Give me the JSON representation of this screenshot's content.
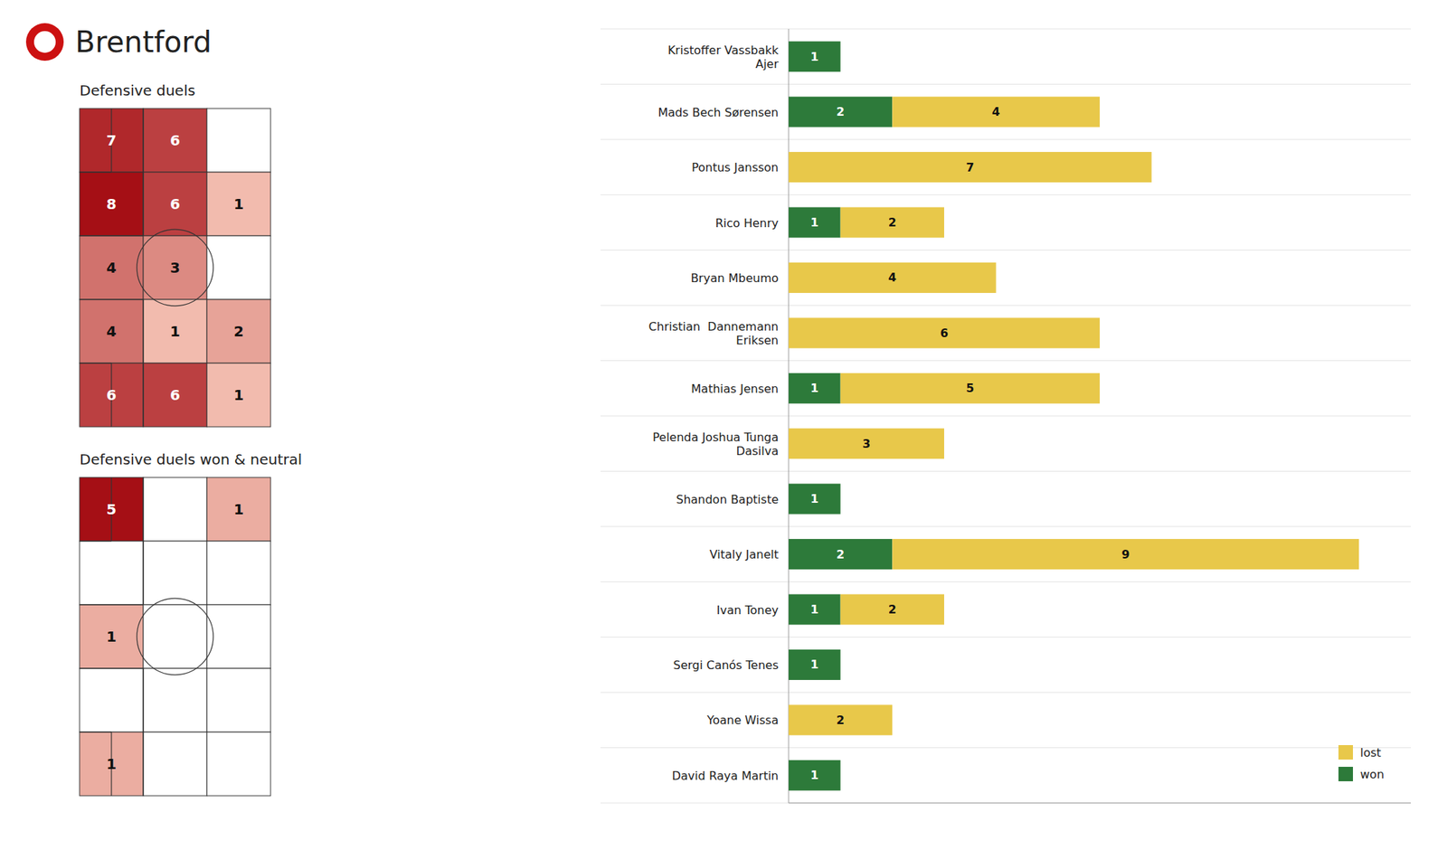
{
  "title": "Brentford",
  "chart_data": [
    {
      "type": "bar",
      "orientation": "horizontal",
      "stacked": true,
      "data_labels": true,
      "tick_labels": "y",
      "grid": true,
      "legend": "lower right",
      "categories": [
        "Kristoffer Vassbakk\nAjer",
        "Mads Bech Sørensen",
        "Pontus Jansson",
        "Rico Henry",
        "Bryan Mbeumo",
        "Christian  Dannemann\nEriksen",
        "Mathias Jensen",
        "Pelenda Joshua Tunga\nDasilva",
        "Shandon Baptiste",
        "Vitaly Janelt",
        "Ivan Toney",
        "Sergi Canós Tenes",
        "Yoane Wissa",
        "David Raya Martin"
      ],
      "series": [
        {
          "name": "won",
          "color": "#2d7a3a",
          "values": [
            1,
            2,
            0,
            1,
            0,
            0,
            1,
            0,
            1,
            2,
            1,
            1,
            0,
            1
          ]
        },
        {
          "name": "lost",
          "color": "#e8c84a",
          "values": [
            0,
            4,
            7,
            2,
            4,
            6,
            5,
            3,
            0,
            9,
            2,
            0,
            2,
            0
          ]
        }
      ],
      "xlim": [
        0,
        12
      ]
    },
    {
      "type": "heatmap",
      "title": "Defensive duels",
      "data_labels": true,
      "tick_labels": false,
      "values": [
        [
          7,
          6,
          0
        ],
        [
          8,
          6,
          1
        ],
        [
          4,
          3,
          0
        ],
        [
          4,
          1,
          2
        ],
        [
          6,
          6,
          1
        ]
      ]
    },
    {
      "type": "heatmap",
      "title": "Defensive duels won & neutral",
      "data_labels": true,
      "tick_labels": false,
      "values": [
        [
          5,
          0,
          1
        ],
        [
          0,
          0,
          0
        ],
        [
          1,
          0,
          0
        ],
        [
          0,
          0,
          0
        ],
        [
          1,
          0,
          0
        ]
      ]
    }
  ]
}
